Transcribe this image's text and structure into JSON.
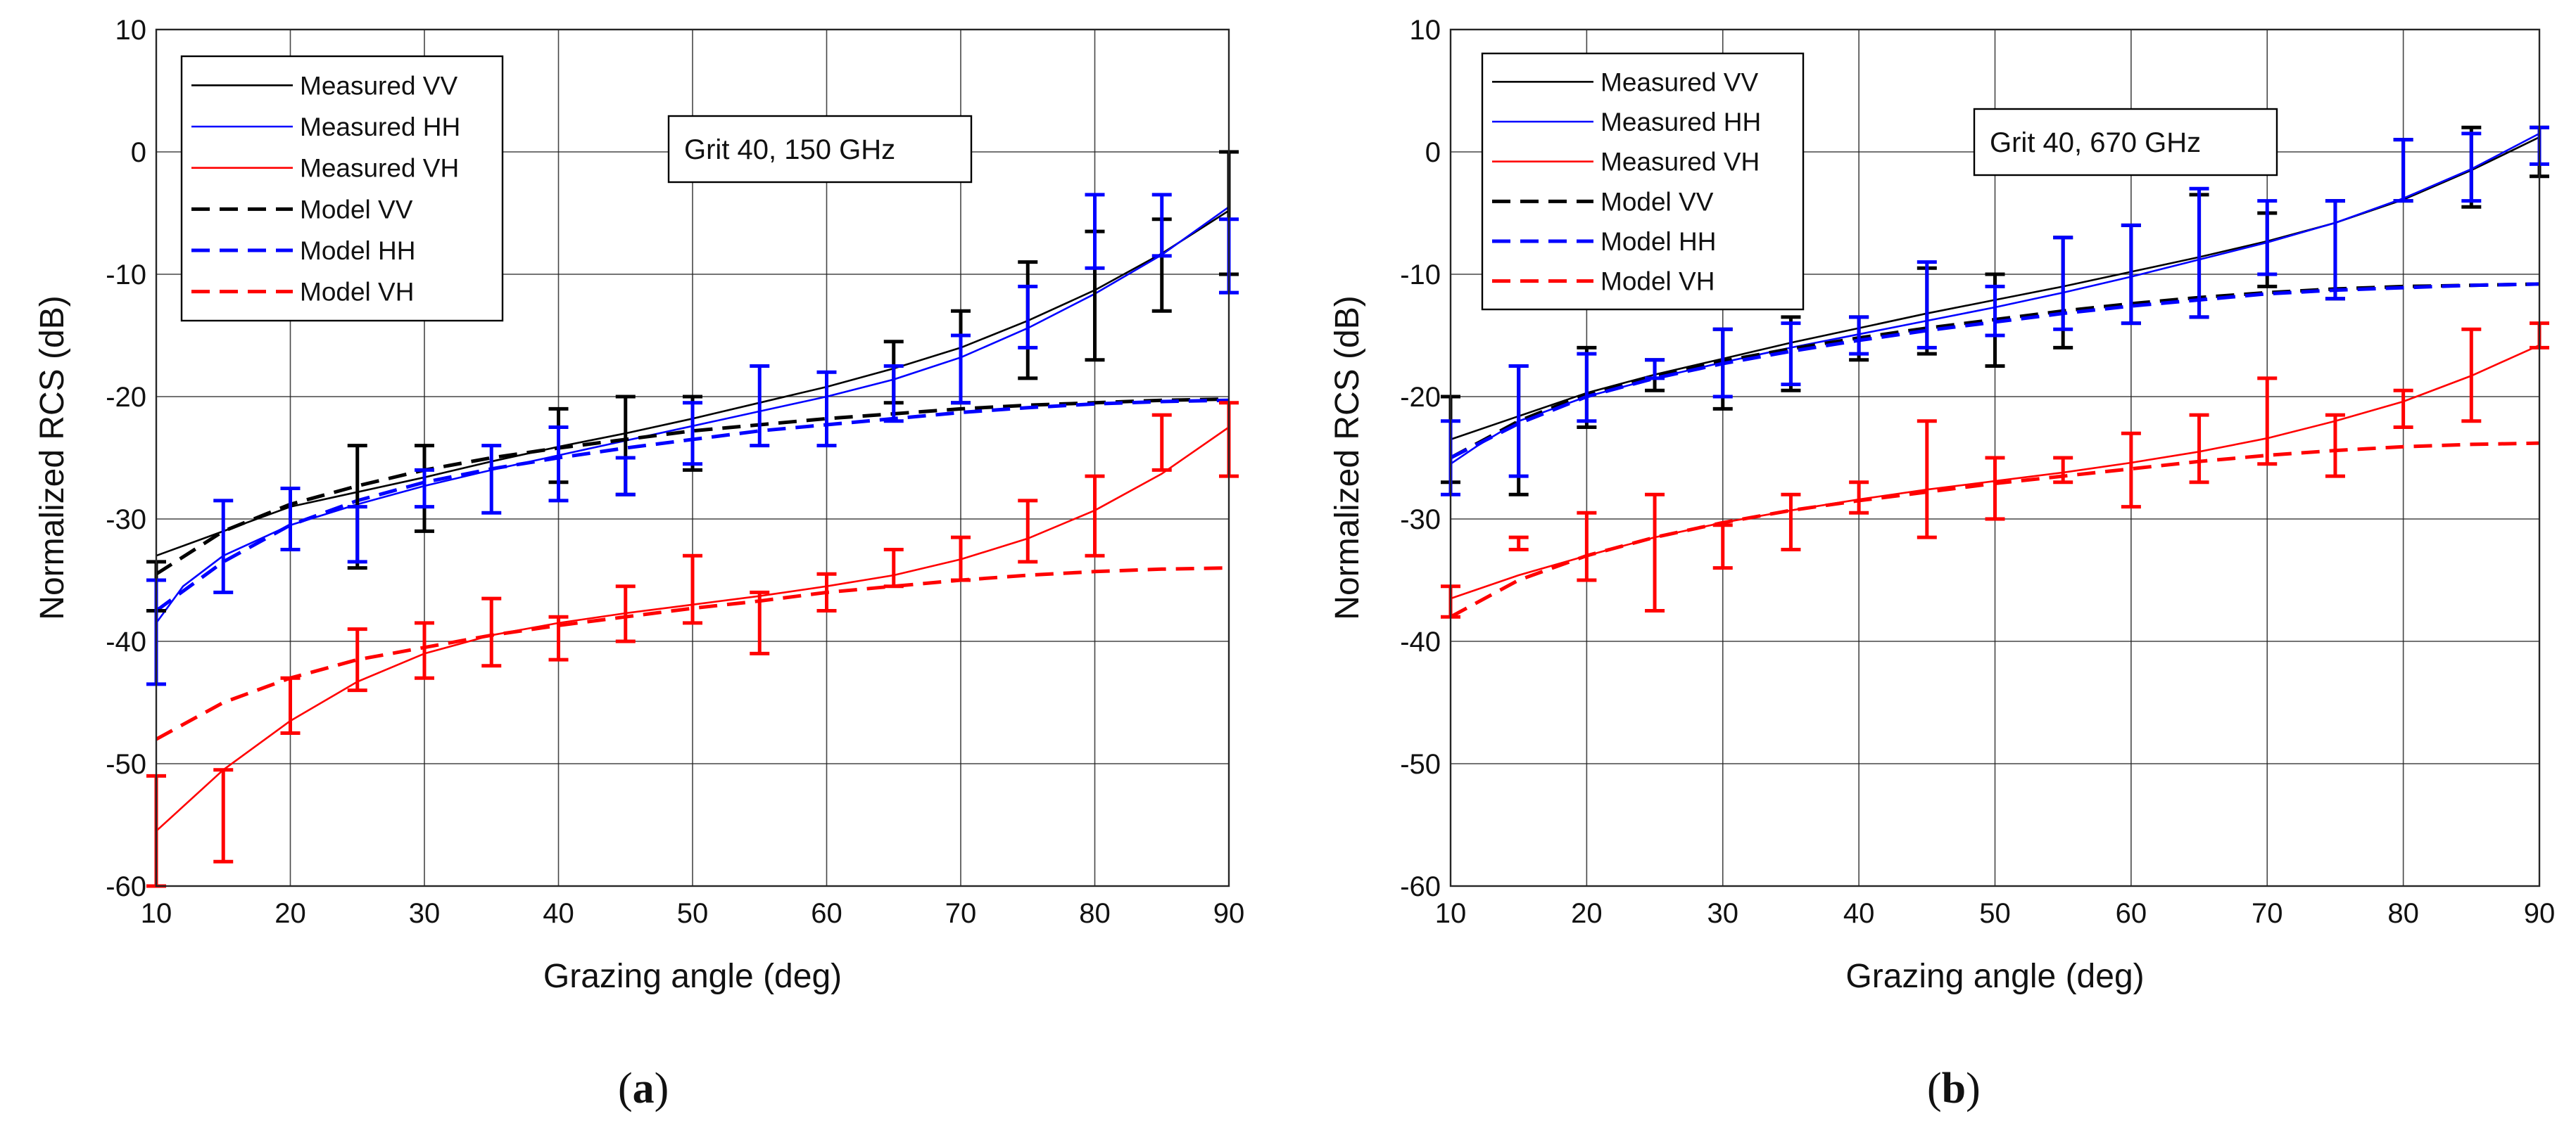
{
  "chart_data": [
    {
      "type": "line",
      "panel_label": "a",
      "title": "",
      "annotation": "Grit 40, 150 GHz",
      "xlabel": "Grazing angle (deg)",
      "ylabel": "Normalized RCS (dB)",
      "xlim": [
        10,
        90
      ],
      "ylim": [
        -60,
        10
      ],
      "xticks": [
        "10",
        "20",
        "30",
        "40",
        "50",
        "60",
        "70",
        "80",
        "90"
      ],
      "yticks": [
        "10",
        "0",
        "-10",
        "-20",
        "-30",
        "-40",
        "-50",
        "-60"
      ],
      "grid": true,
      "legend_position": "top-left",
      "colors": {
        "vv": "#000000",
        "hh": "#0000ff",
        "vh": "#ff0000"
      },
      "series": [
        {
          "name": "Measured VV",
          "color": "#000000",
          "style": "solid",
          "x": [
            10,
            15,
            20,
            25,
            30,
            35,
            40,
            45,
            50,
            55,
            60,
            65,
            70,
            75,
            80,
            85,
            90
          ],
          "y": [
            -33,
            -31,
            -29,
            -27.8,
            -26.6,
            -25.3,
            -24.1,
            -23,
            -21.8,
            -20.5,
            -19.2,
            -17.7,
            -16,
            -13.8,
            -11.3,
            -8.3,
            -4.8
          ]
        },
        {
          "name": "Measured HH",
          "color": "#0000ff",
          "style": "solid",
          "x": [
            10,
            12,
            15,
            20,
            25,
            30,
            35,
            40,
            45,
            50,
            55,
            60,
            65,
            70,
            75,
            80,
            85,
            90
          ],
          "y": [
            -38.5,
            -35.5,
            -33,
            -30.5,
            -28.8,
            -27.3,
            -26,
            -24.8,
            -23.6,
            -22.4,
            -21.2,
            -20,
            -18.6,
            -16.8,
            -14.4,
            -11.6,
            -8.4,
            -4.5
          ]
        },
        {
          "name": "Measured VH",
          "color": "#ff0000",
          "style": "solid",
          "x": [
            10,
            15,
            20,
            25,
            30,
            35,
            40,
            45,
            50,
            55,
            60,
            65,
            70,
            75,
            80,
            85,
            90
          ],
          "y": [
            -55.5,
            -50.5,
            -46.5,
            -43.3,
            -41,
            -39.5,
            -38.5,
            -37.7,
            -37,
            -36.3,
            -35.5,
            -34.6,
            -33.3,
            -31.6,
            -29.3,
            -26.3,
            -22.5
          ]
        },
        {
          "name": "Model VV",
          "color": "#000000",
          "style": "dashed",
          "x": [
            10,
            15,
            20,
            25,
            30,
            35,
            40,
            45,
            50,
            55,
            60,
            65,
            70,
            75,
            80,
            85,
            90
          ],
          "y": [
            -34.5,
            -31,
            -28.8,
            -27.3,
            -26,
            -25,
            -24.2,
            -23.5,
            -22.8,
            -22.3,
            -21.8,
            -21.4,
            -21,
            -20.7,
            -20.5,
            -20.3,
            -20.2
          ]
        },
        {
          "name": "Model HH",
          "color": "#0000ff",
          "style": "dashed",
          "x": [
            10,
            15,
            20,
            25,
            30,
            35,
            40,
            45,
            50,
            55,
            60,
            65,
            70,
            75,
            80,
            85,
            90
          ],
          "y": [
            -37.5,
            -33.5,
            -30.5,
            -28.5,
            -27,
            -25.9,
            -25,
            -24.2,
            -23.5,
            -22.8,
            -22.3,
            -21.8,
            -21.3,
            -20.9,
            -20.6,
            -20.4,
            -20.3
          ]
        },
        {
          "name": "Model VH",
          "color": "#ff0000",
          "style": "dashed",
          "x": [
            10,
            15,
            20,
            25,
            30,
            35,
            40,
            45,
            50,
            55,
            60,
            65,
            70,
            75,
            80,
            85,
            90
          ],
          "y": [
            -48,
            -45,
            -43,
            -41.5,
            -40.5,
            -39.5,
            -38.7,
            -38,
            -37.3,
            -36.7,
            -36,
            -35.5,
            -35,
            -34.6,
            -34.3,
            -34.1,
            -34
          ]
        }
      ],
      "error_bars": [
        {
          "series": "Measured VV",
          "color": "#000000",
          "x": [
            10,
            25,
            30,
            40,
            45,
            50,
            65,
            70,
            75,
            80,
            85,
            90
          ],
          "low": [
            -37.5,
            -34,
            -31,
            -27,
            -28,
            -26,
            -20.5,
            -20.5,
            -18.5,
            -17,
            -13,
            -10
          ],
          "high": [
            -33.5,
            -24,
            -24,
            -21,
            -20,
            -20,
            -15.5,
            -13,
            -9,
            -6.5,
            -5.5,
            0
          ]
        },
        {
          "series": "Measured HH",
          "color": "#0000ff",
          "x": [
            10,
            15,
            20,
            25,
            30,
            35,
            40,
            45,
            50,
            55,
            60,
            65,
            70,
            75,
            80,
            85,
            90
          ],
          "low": [
            -43.5,
            -36,
            -32.5,
            -33.5,
            -29,
            -29.5,
            -28.5,
            -28,
            -25.5,
            -24,
            -24,
            -22,
            -20.5,
            -16,
            -9.5,
            -8.5,
            -11.5
          ],
          "high": [
            -35,
            -28.5,
            -27.5,
            -29,
            -26,
            -24,
            -22.5,
            -25,
            -20.5,
            -17.5,
            -18,
            -17.5,
            -15,
            -11,
            -3.5,
            -3.5,
            -5.5
          ]
        },
        {
          "series": "Measured VH",
          "color": "#ff0000",
          "x": [
            10,
            15,
            20,
            25,
            30,
            35,
            40,
            45,
            50,
            55,
            60,
            65,
            70,
            75,
            80,
            85,
            90
          ],
          "low": [
            -60,
            -58,
            -47.5,
            -44,
            -43,
            -42,
            -41.5,
            -40,
            -38.5,
            -41,
            -37.5,
            -35.5,
            -35,
            -33.5,
            -33,
            -26,
            -26.5
          ],
          "high": [
            -51,
            -50.5,
            -43,
            -39,
            -38.5,
            -36.5,
            -38,
            -35.5,
            -33,
            -36,
            -34.5,
            -32.5,
            -31.5,
            -28.5,
            -26.5,
            -21.5,
            -20.5
          ]
        }
      ]
    },
    {
      "type": "line",
      "panel_label": "b",
      "title": "",
      "annotation": "Grit 40, 670 GHz",
      "xlabel": "Grazing angle (deg)",
      "ylabel": "Normalized RCS (dB)",
      "xlim": [
        10,
        90
      ],
      "ylim": [
        -60,
        10
      ],
      "xticks": [
        "10",
        "20",
        "30",
        "40",
        "50",
        "60",
        "70",
        "80",
        "90"
      ],
      "yticks": [
        "10",
        "0",
        "-10",
        "-20",
        "-30",
        "-40",
        "-50",
        "-60"
      ],
      "grid": true,
      "legend_position": "top-left",
      "colors": {
        "vv": "#000000",
        "hh": "#0000ff",
        "vh": "#ff0000"
      },
      "series": [
        {
          "name": "Measured VV",
          "color": "#000000",
          "style": "solid",
          "x": [
            10,
            15,
            20,
            25,
            30,
            35,
            40,
            45,
            50,
            55,
            60,
            65,
            70,
            75,
            80,
            85,
            90
          ],
          "y": [
            -23.5,
            -21.6,
            -19.7,
            -18.2,
            -16.9,
            -15.6,
            -14.4,
            -13.2,
            -12.1,
            -11,
            -9.8,
            -8.6,
            -7.3,
            -5.8,
            -3.9,
            -1.5,
            1.2
          ]
        },
        {
          "name": "Measured HH",
          "color": "#0000ff",
          "style": "solid",
          "x": [
            10,
            12,
            15,
            20,
            25,
            30,
            35,
            40,
            45,
            50,
            55,
            60,
            65,
            70,
            75,
            80,
            85,
            90
          ],
          "y": [
            -25.5,
            -24,
            -22,
            -20,
            -18.5,
            -17.2,
            -16,
            -14.9,
            -13.8,
            -12.7,
            -11.5,
            -10.2,
            -8.8,
            -7.4,
            -5.8,
            -3.8,
            -1.4,
            1.5
          ]
        },
        {
          "name": "Measured VH",
          "color": "#ff0000",
          "style": "solid",
          "x": [
            10,
            15,
            20,
            25,
            30,
            35,
            40,
            45,
            50,
            55,
            60,
            65,
            70,
            75,
            80,
            85,
            90
          ],
          "y": [
            -36.5,
            -34.6,
            -33,
            -31.5,
            -30.3,
            -29.3,
            -28.4,
            -27.6,
            -26.9,
            -26.2,
            -25.4,
            -24.5,
            -23.4,
            -22,
            -20.4,
            -18.3,
            -15.8
          ]
        },
        {
          "name": "Model VV",
          "color": "#000000",
          "style": "dashed",
          "x": [
            10,
            15,
            20,
            25,
            30,
            35,
            40,
            45,
            50,
            55,
            60,
            65,
            70,
            75,
            80,
            85,
            90
          ],
          "y": [
            -25,
            -22,
            -19.8,
            -18.3,
            -17.1,
            -16.1,
            -15.2,
            -14.4,
            -13.7,
            -13,
            -12.4,
            -11.9,
            -11.5,
            -11.2,
            -11,
            -10.9,
            -10.8
          ]
        },
        {
          "name": "Model HH",
          "color": "#0000ff",
          "style": "dashed",
          "x": [
            10,
            15,
            20,
            25,
            30,
            35,
            40,
            45,
            50,
            55,
            60,
            65,
            70,
            75,
            80,
            85,
            90
          ],
          "y": [
            -25,
            -22.2,
            -20,
            -18.5,
            -17.3,
            -16.3,
            -15.4,
            -14.6,
            -13.9,
            -13.2,
            -12.6,
            -12.1,
            -11.6,
            -11.3,
            -11.1,
            -10.9,
            -10.8
          ]
        },
        {
          "name": "Model VH",
          "color": "#ff0000",
          "style": "dashed",
          "x": [
            10,
            15,
            20,
            25,
            30,
            35,
            40,
            45,
            50,
            55,
            60,
            65,
            70,
            75,
            80,
            85,
            90
          ],
          "y": [
            -38,
            -35,
            -33,
            -31.5,
            -30.3,
            -29.3,
            -28.5,
            -27.8,
            -27.1,
            -26.5,
            -25.9,
            -25.3,
            -24.8,
            -24.4,
            -24.1,
            -23.9,
            -23.8
          ]
        }
      ],
      "error_bars": [
        {
          "series": "Measured VV",
          "color": "#000000",
          "x": [
            10,
            15,
            20,
            25,
            30,
            35,
            40,
            45,
            50,
            55,
            60,
            65,
            70,
            75,
            80,
            85,
            90
          ],
          "low": [
            -27,
            -28,
            -22.5,
            -19.5,
            -21,
            -19.5,
            -17,
            -16.5,
            -17.5,
            -16,
            -14,
            -13.5,
            -11,
            -12,
            -4,
            -4.5,
            -2
          ],
          "high": [
            -20,
            -17.5,
            -16,
            -17,
            -14.5,
            -13.5,
            -13.5,
            -9.5,
            -10,
            -7,
            -6,
            -3.5,
            -5,
            -4,
            1,
            2,
            2
          ]
        },
        {
          "series": "Measured HH",
          "color": "#0000ff",
          "x": [
            10,
            15,
            20,
            25,
            30,
            35,
            40,
            45,
            50,
            55,
            60,
            65,
            70,
            75,
            80,
            85,
            90
          ],
          "low": [
            -28,
            -26.5,
            -22,
            -18.5,
            -20,
            -19,
            -16.5,
            -16,
            -15,
            -14.5,
            -14,
            -13.5,
            -10,
            -12,
            -4,
            -4,
            -1
          ],
          "high": [
            -22,
            -17.5,
            -16.5,
            -17,
            -14.5,
            -14,
            -13.5,
            -9,
            -11,
            -7,
            -6,
            -3,
            -4,
            -4,
            1,
            1.5,
            2
          ]
        },
        {
          "series": "Measured VH",
          "color": "#ff0000",
          "x": [
            10,
            15,
            20,
            25,
            30,
            35,
            40,
            45,
            50,
            55,
            60,
            65,
            70,
            75,
            80,
            85,
            90
          ],
          "low": [
            -38,
            -32.5,
            -35,
            -37.5,
            -34,
            -32.5,
            -29.5,
            -31.5,
            -30,
            -27,
            -29,
            -27,
            -25.5,
            -26.5,
            -22.5,
            -22,
            -16
          ],
          "high": [
            -35.5,
            -31.5,
            -29.5,
            -28,
            -30.5,
            -28,
            -27,
            -22,
            -25,
            -25,
            -23,
            -21.5,
            -18.5,
            -21.5,
            -19.5,
            -14.5,
            -14
          ]
        }
      ]
    }
  ]
}
